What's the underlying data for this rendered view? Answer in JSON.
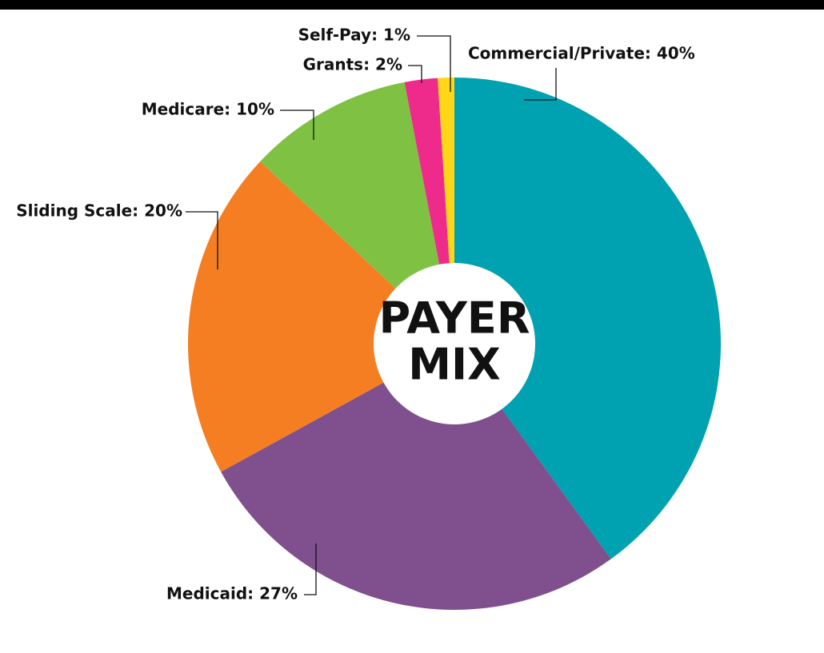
{
  "chart_data": {
    "type": "donut",
    "center_text": [
      "PAYER",
      "MIX"
    ],
    "values": [
      40,
      27,
      20,
      10,
      2,
      1
    ],
    "value_labels": [
      "Commercial/Private: 40%",
      "Medicaid: 27%",
      "Sliding Scale: 20%",
      "Medicare: 10%",
      "Grants: 2%",
      "Self-Pay: 1%"
    ],
    "colors": [
      "#00a1b0",
      "#7f4f8e",
      "#f47e21",
      "#7fc243",
      "#ee2a8b",
      "#ffd618"
    ]
  }
}
